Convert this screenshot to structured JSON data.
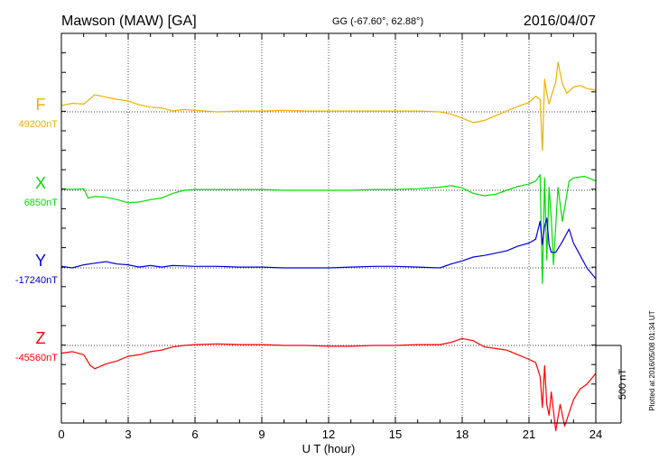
{
  "header": {
    "station": "Mawson (MAW)  [GA]",
    "coords": "GG (-67.60°,  62.88°)",
    "date": "2016/04/07"
  },
  "chart_data": {
    "type": "line",
    "xlabel": "U T (hour)",
    "xlim": [
      0,
      24
    ],
    "x_ticks": [
      "0",
      "3",
      "6",
      "9",
      "12",
      "15",
      "18",
      "21",
      "24"
    ],
    "grid": true,
    "scale_bar": "500 nT",
    "plotted_note": "Plotted at 2016/05/08 01:34 UT",
    "series": [
      {
        "name": "F",
        "baseline_label": "49200nT",
        "color": "#f0b000",
        "x": [
          0,
          0.5,
          1.0,
          1.5,
          2.0,
          2.5,
          3.0,
          3.5,
          4.0,
          4.5,
          5.0,
          5.5,
          6.0,
          7.0,
          8.0,
          9.0,
          10.0,
          11.0,
          12.0,
          13.0,
          14.0,
          15.0,
          16.0,
          17.0,
          17.5,
          18.0,
          18.5,
          19.0,
          19.5,
          20.0,
          20.5,
          21.0,
          21.3,
          21.5,
          21.6,
          21.7,
          21.8,
          21.9,
          22.0,
          22.2,
          22.3,
          22.5,
          22.7,
          23.0,
          23.3,
          23.6,
          24.0
        ],
        "values": [
          40,
          55,
          50,
          110,
          95,
          80,
          70,
          45,
          30,
          25,
          5,
          15,
          10,
          0,
          5,
          5,
          10,
          5,
          5,
          5,
          5,
          5,
          5,
          0,
          -15,
          -40,
          -70,
          -55,
          -25,
          5,
          35,
          60,
          100,
          80,
          -250,
          210,
          120,
          50,
          100,
          190,
          320,
          180,
          120,
          160,
          170,
          150,
          140
        ]
      },
      {
        "name": "X",
        "baseline_label": "6850nT",
        "color": "#00dd00",
        "x": [
          0,
          0.5,
          1.0,
          1.2,
          1.5,
          2.0,
          2.5,
          3.0,
          3.5,
          4.0,
          4.5,
          5.0,
          5.5,
          6.0,
          7.0,
          8.0,
          9.0,
          10.0,
          11.0,
          12.0,
          13.0,
          14.0,
          15.0,
          16.0,
          17.0,
          17.5,
          18.0,
          18.5,
          19.0,
          19.5,
          20.0,
          20.5,
          21.0,
          21.3,
          21.5,
          21.6,
          21.7,
          21.8,
          21.9,
          22.0,
          22.1,
          22.3,
          22.5,
          22.8,
          23.0,
          23.5,
          24.0
        ],
        "values": [
          10,
          5,
          10,
          -50,
          -40,
          -45,
          -60,
          -80,
          -75,
          -60,
          -50,
          -20,
          0,
          5,
          5,
          5,
          5,
          0,
          0,
          0,
          0,
          5,
          5,
          10,
          20,
          30,
          15,
          -20,
          -35,
          -25,
          0,
          25,
          40,
          60,
          100,
          -600,
          80,
          -450,
          20,
          -180,
          -480,
          20,
          -200,
          60,
          80,
          90,
          60
        ]
      },
      {
        "name": "Y",
        "baseline_label": "-17240nT",
        "color": "#0000dd",
        "x": [
          0,
          0.5,
          1.0,
          1.5,
          2.0,
          2.5,
          3.0,
          3.5,
          4.0,
          4.5,
          5.0,
          6.0,
          7.0,
          8.0,
          9.0,
          10.0,
          11.0,
          12.0,
          13.0,
          14.0,
          15.0,
          16.0,
          17.0,
          17.5,
          18.0,
          18.5,
          19.0,
          19.5,
          20.0,
          20.5,
          21.0,
          21.3,
          21.5,
          21.6,
          21.7,
          21.8,
          21.9,
          22.0,
          22.2,
          22.5,
          22.8,
          23.0,
          23.3,
          23.6,
          24.0
        ],
        "values": [
          10,
          0,
          20,
          30,
          40,
          25,
          20,
          5,
          15,
          5,
          15,
          10,
          10,
          5,
          5,
          0,
          0,
          0,
          5,
          10,
          10,
          5,
          0,
          25,
          45,
          70,
          80,
          95,
          110,
          140,
          160,
          185,
          300,
          150,
          270,
          320,
          150,
          100,
          100,
          170,
          250,
          160,
          80,
          0,
          -70
        ]
      },
      {
        "name": "Z",
        "baseline_label": "-45560nT",
        "color": "#ff0000",
        "x": [
          0,
          0.5,
          1.0,
          1.3,
          1.5,
          2.0,
          2.5,
          3.0,
          3.5,
          4.0,
          4.5,
          5.0,
          5.5,
          6.0,
          7.0,
          8.0,
          9.0,
          10.0,
          11.0,
          12.0,
          13.0,
          14.0,
          15.0,
          16.0,
          17.0,
          17.5,
          18.0,
          18.5,
          19.0,
          19.5,
          20.0,
          20.5,
          21.0,
          21.3,
          21.5,
          21.6,
          21.7,
          21.8,
          21.9,
          22.0,
          22.2,
          22.4,
          22.6,
          23.0,
          23.3,
          23.6,
          24.0
        ],
        "values": [
          -50,
          -40,
          -60,
          -130,
          -150,
          -120,
          -100,
          -70,
          -60,
          -40,
          -30,
          -10,
          0,
          5,
          10,
          5,
          5,
          0,
          0,
          -5,
          -5,
          0,
          0,
          5,
          5,
          20,
          45,
          30,
          -10,
          -20,
          -30,
          -60,
          -90,
          -110,
          -200,
          -400,
          -130,
          -380,
          -450,
          -300,
          -550,
          -380,
          -520,
          -350,
          -280,
          -250,
          -180
        ]
      }
    ]
  }
}
